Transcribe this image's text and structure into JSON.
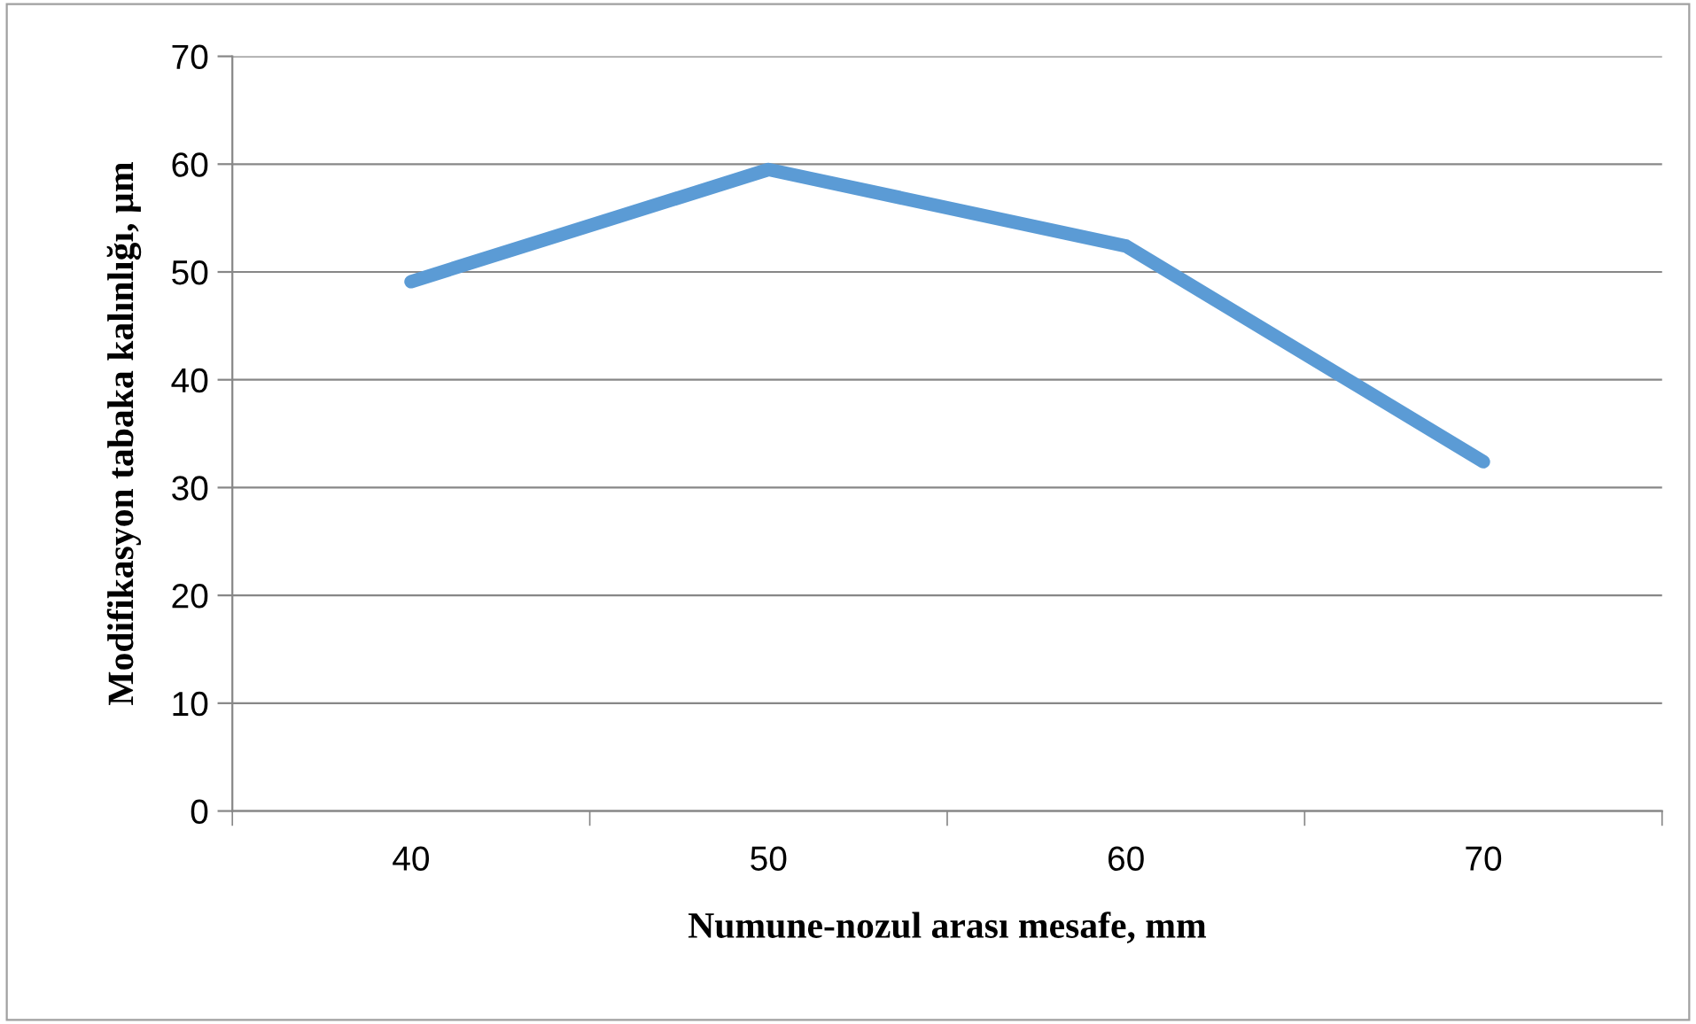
{
  "chart_data": {
    "type": "line",
    "xlabel": "Numune-nozul arası mesafe, mm",
    "ylabel": "Modifikasyon tabaka kalınlığı, µm",
    "categories": [
      "40",
      "50",
      "60",
      "70"
    ],
    "series": [
      {
        "color": "#5b9bd5",
        "values": [
          49.1,
          59.5,
          52.4,
          32.4
        ]
      }
    ],
    "ylim": [
      0,
      70
    ],
    "yticks": [
      0,
      10,
      20,
      30,
      40,
      50,
      60,
      70
    ],
    "grid": "y",
    "marker": "none",
    "line_style": "solid"
  }
}
